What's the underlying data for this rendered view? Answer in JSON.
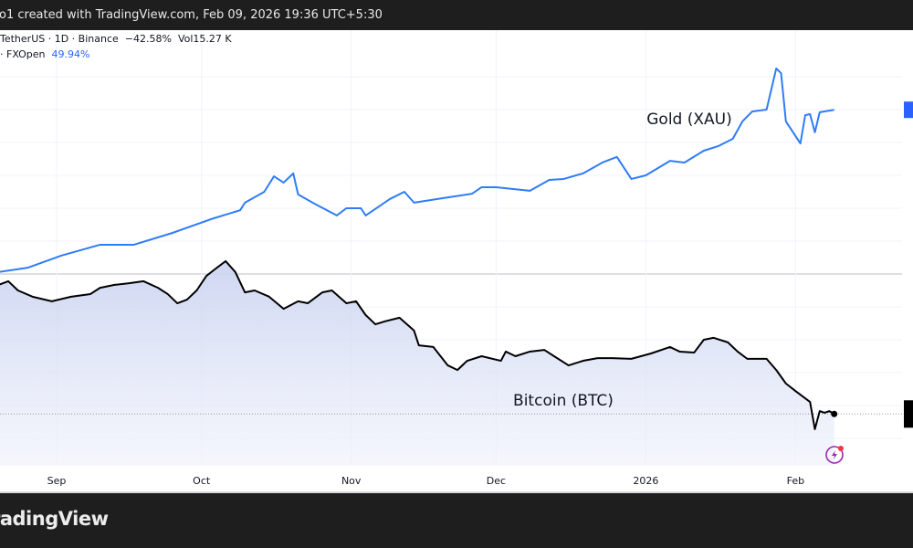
{
  "header": {
    "created_text": "o1 created with TradingView.com, Feb 09, 2026 19:36 UTC+5:30"
  },
  "legend": {
    "btc_prefix": "TetherUS · 1D · Binance",
    "btc_change": "−42.58%",
    "btc_volume": "Vol15.27 K",
    "gold_prefix": "· FXOpen",
    "gold_change": "49.94%"
  },
  "footer": {
    "brand": "radingView"
  },
  "colors": {
    "gold_line": "#2f7cf6",
    "btc_line": "#000000",
    "btc_fill": "#dfe4f7",
    "accent": "#2962ff",
    "flash_icon": "#9c27b0"
  },
  "icons": {
    "flash": "lightning-icon"
  },
  "chart_data": {
    "type": "line",
    "y_unit": "% change",
    "ylim": [
      -50,
      65
    ],
    "grid": true,
    "x_tick_labels": [
      "Sep",
      "Oct",
      "Nov",
      "Dec",
      "2026",
      "Feb"
    ],
    "x_ticks": [
      "2025-09-01",
      "2025-10-01",
      "2025-11-01",
      "2025-12-01",
      "2026-01-01",
      "2026-02-01"
    ],
    "series": [
      {
        "name": "Gold (XAU)",
        "color": "#2f7cf6",
        "last_value": 49.94,
        "points": [
          [
            "2025-08-20",
            0.6
          ],
          [
            "2025-08-26",
            1.9
          ],
          [
            "2025-09-02",
            5.6
          ],
          [
            "2025-09-10",
            8.9
          ],
          [
            "2025-09-17",
            8.9
          ],
          [
            "2025-09-25",
            12.5
          ],
          [
            "2025-10-03",
            16.7
          ],
          [
            "2025-10-09",
            19.4
          ],
          [
            "2025-10-10",
            21.7
          ],
          [
            "2025-10-14",
            25
          ],
          [
            "2025-10-16",
            29.7
          ],
          [
            "2025-10-18",
            27.8
          ],
          [
            "2025-10-20",
            30.6
          ],
          [
            "2025-10-21",
            24.2
          ],
          [
            "2025-10-24",
            21.7
          ],
          [
            "2025-10-29",
            17.8
          ],
          [
            "2025-10-31",
            20
          ],
          [
            "2025-11-03",
            20
          ],
          [
            "2025-11-04",
            17.8
          ],
          [
            "2025-11-09",
            22.8
          ],
          [
            "2025-11-12",
            25
          ],
          [
            "2025-11-14",
            21.7
          ],
          [
            "2025-11-21",
            23.3
          ],
          [
            "2025-11-26",
            24.4
          ],
          [
            "2025-11-28",
            26.4
          ],
          [
            "2025-12-01",
            26.4
          ],
          [
            "2025-12-08",
            25.3
          ],
          [
            "2025-12-12",
            28.6
          ],
          [
            "2025-12-15",
            28.9
          ],
          [
            "2025-12-19",
            30.6
          ],
          [
            "2025-12-23",
            33.9
          ],
          [
            "2025-12-26",
            35.6
          ],
          [
            "2025-12-29",
            28.9
          ],
          [
            "2026-01-01",
            30
          ],
          [
            "2026-01-06",
            34.4
          ],
          [
            "2026-01-09",
            33.9
          ],
          [
            "2026-01-13",
            37.5
          ],
          [
            "2026-01-16",
            38.9
          ],
          [
            "2026-01-19",
            41.1
          ],
          [
            "2026-01-21",
            46.4
          ],
          [
            "2026-01-23",
            49.4
          ],
          [
            "2026-01-26",
            50
          ],
          [
            "2026-01-28",
            62.5
          ],
          [
            "2026-01-29",
            61.1
          ],
          [
            "2026-01-30",
            46.4
          ],
          [
            "2026-02-02",
            39.7
          ],
          [
            "2026-02-03",
            48.3
          ],
          [
            "2026-02-04",
            48.6
          ],
          [
            "2026-02-05",
            43.1
          ],
          [
            "2026-02-06",
            49.2
          ],
          [
            "2026-02-09",
            49.94
          ]
        ]
      },
      {
        "name": "Bitcoin (BTC)",
        "color": "#000000",
        "last_value": -42.58,
        "points": [
          [
            "2025-08-20",
            -3.3
          ],
          [
            "2025-08-22",
            -2.2
          ],
          [
            "2025-08-24",
            -5
          ],
          [
            "2025-08-27",
            -6.9
          ],
          [
            "2025-08-31",
            -8.3
          ],
          [
            "2025-09-04",
            -6.9
          ],
          [
            "2025-09-08",
            -6.1
          ],
          [
            "2025-09-10",
            -4.2
          ],
          [
            "2025-09-13",
            -3.3
          ],
          [
            "2025-09-16",
            -2.8
          ],
          [
            "2025-09-19",
            -2.2
          ],
          [
            "2025-09-22",
            -4.2
          ],
          [
            "2025-09-24",
            -6.1
          ],
          [
            "2025-09-26",
            -8.9
          ],
          [
            "2025-09-28",
            -7.8
          ],
          [
            "2025-09-30",
            -5
          ],
          [
            "2025-10-02",
            -0.6
          ],
          [
            "2025-10-04",
            1.7
          ],
          [
            "2025-10-06",
            3.9
          ],
          [
            "2025-10-08",
            0.6
          ],
          [
            "2025-10-10",
            -5.6
          ],
          [
            "2025-10-12",
            -5
          ],
          [
            "2025-10-15",
            -6.9
          ],
          [
            "2025-10-18",
            -10.6
          ],
          [
            "2025-10-21",
            -8.3
          ],
          [
            "2025-10-23",
            -8.9
          ],
          [
            "2025-10-26",
            -5.6
          ],
          [
            "2025-10-28",
            -5
          ],
          [
            "2025-10-31",
            -8.9
          ],
          [
            "2025-11-02",
            -8.3
          ],
          [
            "2025-11-04",
            -12.5
          ],
          [
            "2025-11-06",
            -15.3
          ],
          [
            "2025-11-08",
            -14.4
          ],
          [
            "2025-11-11",
            -13.3
          ],
          [
            "2025-11-14",
            -17.2
          ],
          [
            "2025-11-15",
            -21.7
          ],
          [
            "2025-11-18",
            -22.2
          ],
          [
            "2025-11-21",
            -27.8
          ],
          [
            "2025-11-23",
            -29.2
          ],
          [
            "2025-11-25",
            -26.4
          ],
          [
            "2025-11-28",
            -25
          ],
          [
            "2025-12-02",
            -26.4
          ],
          [
            "2025-12-03",
            -23.6
          ],
          [
            "2025-12-05",
            -25
          ],
          [
            "2025-12-08",
            -23.6
          ],
          [
            "2025-12-11",
            -23.1
          ],
          [
            "2025-12-13",
            -25
          ],
          [
            "2025-12-16",
            -27.8
          ],
          [
            "2025-12-19",
            -26.4
          ],
          [
            "2025-12-22",
            -25.6
          ],
          [
            "2025-12-25",
            -25.6
          ],
          [
            "2025-12-29",
            -25.8
          ],
          [
            "2026-01-02",
            -24.2
          ],
          [
            "2026-01-06",
            -22.2
          ],
          [
            "2026-01-08",
            -23.6
          ],
          [
            "2026-01-11",
            -23.9
          ],
          [
            "2026-01-13",
            -20
          ],
          [
            "2026-01-15",
            -19.4
          ],
          [
            "2026-01-18",
            -20.8
          ],
          [
            "2026-01-20",
            -23.6
          ],
          [
            "2026-01-22",
            -25.8
          ],
          [
            "2026-01-26",
            -25.8
          ],
          [
            "2026-01-28",
            -29.2
          ],
          [
            "2026-01-30",
            -33.3
          ],
          [
            "2026-02-01",
            -35.6
          ],
          [
            "2026-02-04",
            -38.9
          ],
          [
            "2026-02-05",
            -47.2
          ],
          [
            "2026-02-06",
            -41.7
          ],
          [
            "2026-02-07",
            -42.2
          ],
          [
            "2026-02-08",
            -41.7
          ],
          [
            "2026-02-09",
            -42.58
          ]
        ]
      }
    ]
  }
}
